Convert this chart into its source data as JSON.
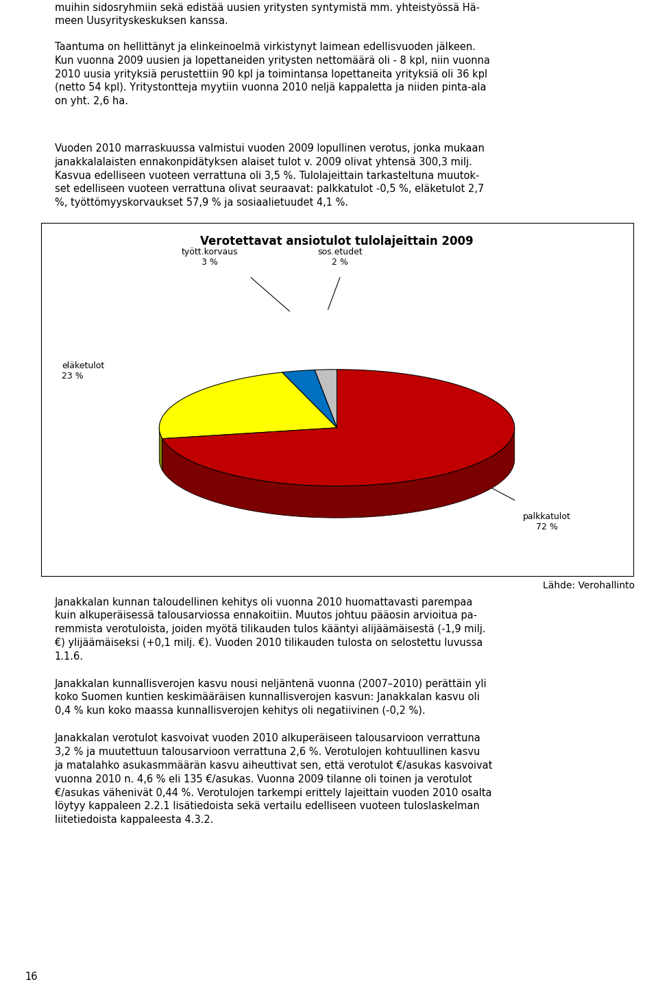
{
  "title": "Verotettavat ansiotulot tulolajeittain 2009",
  "pie_labels": [
    "palkkatulot",
    "eläketulot",
    "tyött.korvaus",
    "sos.etudet"
  ],
  "pie_values": [
    72,
    23,
    3,
    2
  ],
  "pie_colors": [
    "#c00000",
    "#ffff00",
    "#0070c0",
    "#c0c0c0"
  ],
  "pie_side_colors": [
    "#7b0000",
    "#808000",
    "#004080",
    "#808080"
  ],
  "source_text": "Lähde: Verohallinto",
  "background_color": "#ffffff",
  "para1": "muihin sidosryhmiin sekä edistää uusien yritysten syntymistä mm. yhteistyössä Hä-\nmeen Uusyrityskeskuksen kanssa.",
  "para2": "Taantuma on hellittänyt ja elinkeinoelmä virkistynyt laimean edellisvuoden jälkeen.\nKun vuonna 2009 uusien ja lopettaneiden yritysten nettomäärä oli - 8 kpl, niin vuonna\n2010 uusia yrityksiä perustettiin 90 kpl ja toimintansa lopettaneita yrityksiä oli 36 kpl\n(netto 54 kpl). Yritystontteja myytiin vuonna 2010 neljä kappaletta ja niiden pinta-ala\non yht. 2,6 ha.",
  "para3": "Vuoden 2010 marraskuussa valmistui vuoden 2009 lopullinen verotus, jonka mukaan\njanakkalalaisten ennakonpidätyksen alaiset tulot v. 2009 olivat yhtensä 300,3 milj.\nKasvua edelliseen vuoteen verrattuna oli 3,5 %. Tulolajeittain tarkasteltuna muutok-\nset edelliseen vuoteen verrattuna olivat seuraavat: palkkatulot -0,5 %, eläketulot 2,7\n%, työttömyyskorvaukset 57,9 % ja sosiaalietuudet 4,1 %.",
  "para4": "Janakkalan kunnan taloudellinen kehitys oli vuonna 2010 huomattavasti parempaa\nkuin alkuperäisessä talousarviossa ennakoitiin. Muutos johtuu pääosin arvioitua pa-\nremmista verotuloista, joiden myötä tilikauden tulos kääntyi alijäämäisestä (-1,9 milj.\n€) ylijäämäiseksi (+0,1 milj. €). Vuoden 2010 tilikauden tulosta on selostettu luvussa\n1.1.6.",
  "para5": "Janakkalan kunnallisverojen kasvu nousi neljäntenä vuonna (2007–2010) perättäin yli\nkoko Suomen kuntien keskimääräisen kunnallisverojen kasvun: Janakkalan kasvu oli\n0,4 % kun koko maassa kunnallisverojen kehitys oli negatiivinen (-0,2 %).",
  "para6": "Janakkalan verotulot kasvoivat vuoden 2010 alkuperäiseen talousarvioon verrattuna\n3,2 % ja muutettuun talousarvioon verrattuna 2,6 %. Verotulojen kohtuullinen kasvu\nja matalahko asukasmmäärän kasvu aiheuttivat sen, että verotulot €/asukas kasvoivat\nvuonna 2010 n. 4,6 % eli 135 €/asukas. Vuonna 2009 tilanne oli toinen ja verotulot\n€/asukas vähenivät 0,44 %. Verotulojen tarkempi erittely lajeittain vuoden 2010 osalta\nlöytyy kappaleen 2.2.1 lisätiedoista sekä vertailu edelliseen vuoteen tuloslaskelman\nliitetiedoista kappaleesta 4.3.2.",
  "page_number": "16",
  "font_size_body": 10.5,
  "font_size_title": 12,
  "font_size_source": 10,
  "font_size_label": 9
}
